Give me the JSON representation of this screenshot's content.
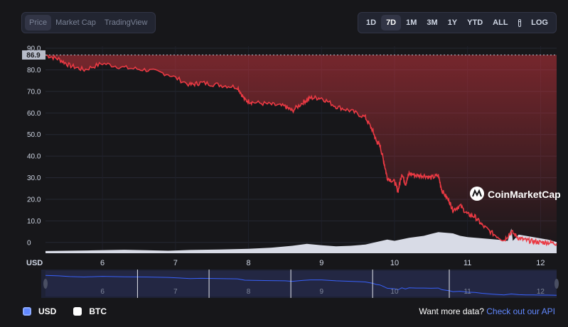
{
  "tabs_left": [
    "Price",
    "Market Cap",
    "TradingView"
  ],
  "ranges": [
    "1D",
    "7D",
    "1M",
    "3M",
    "1Y",
    "YTD",
    "ALL"
  ],
  "active_range": "7D",
  "log_label": "LOG",
  "icons": {
    "calendar": "calendar-icon",
    "brand": "coinmarketcap-logo"
  },
  "brand": "CoinMarketCap",
  "colors": {
    "line": "#ea3943",
    "volume": "#d8dbe6",
    "navigator": "#3861fb",
    "usd": "#6188ff",
    "btc": "#ffffff"
  },
  "chart_data": {
    "type": "line",
    "series": [
      {
        "name": "USD",
        "x": [
          5.22,
          5.4,
          5.55,
          5.75,
          6.0,
          6.3,
          6.6,
          6.9,
          7.2,
          7.35,
          7.6,
          7.85,
          7.95,
          8.05,
          8.3,
          8.5,
          8.6,
          8.75,
          8.85,
          9.0,
          9.2,
          9.4,
          9.6,
          9.7,
          9.75,
          9.8,
          9.85,
          9.9,
          10.0,
          10.05,
          10.1,
          10.15,
          10.2,
          10.3,
          10.4,
          10.5,
          10.6,
          10.65,
          10.75,
          10.8,
          10.9,
          11.0,
          11.1,
          11.2,
          11.35,
          11.5,
          11.6,
          11.7,
          11.8,
          11.9,
          12.0,
          12.1,
          12.22
        ],
        "values": [
          86.9,
          85,
          82,
          80,
          83,
          81,
          80,
          78,
          73,
          74,
          73,
          72,
          66,
          65,
          64,
          63,
          61,
          65,
          67,
          67,
          63,
          61,
          58,
          52,
          47,
          45,
          38,
          30,
          28,
          24,
          32,
          27,
          32,
          31,
          31,
          30,
          31,
          24,
          19,
          15,
          17,
          13,
          12,
          8,
          4,
          1,
          5,
          2,
          1,
          0.5,
          0,
          0,
          -0.5
        ]
      }
    ],
    "y_current_label": "86.9",
    "yticks": [
      "90.0",
      "80.0",
      "70.0",
      "60.0",
      "50.0",
      "40.0",
      "30.0",
      "20.0",
      "10.0",
      "0"
    ],
    "ylim": [
      -5,
      91
    ],
    "xticks": [
      "6",
      "7",
      "8",
      "9",
      "10",
      "11",
      "12"
    ],
    "xlim": [
      5.22,
      12.22
    ],
    "x_axis_unit": "USD",
    "volume": {
      "x": [
        5.22,
        5.8,
        6.3,
        6.6,
        6.9,
        7.2,
        7.6,
        8.0,
        8.3,
        8.6,
        8.8,
        9.0,
        9.2,
        9.4,
        9.6,
        9.75,
        9.9,
        10.0,
        10.2,
        10.4,
        10.5,
        10.6,
        10.8,
        10.9,
        11.0,
        11.2,
        11.4,
        11.55,
        11.6,
        11.62,
        11.7,
        11.9,
        12.1,
        12.22
      ],
      "values": [
        0.09,
        0.11,
        0.14,
        0.12,
        0.1,
        0.13,
        0.15,
        0.18,
        0.22,
        0.3,
        0.38,
        0.32,
        0.28,
        0.3,
        0.35,
        0.45,
        0.55,
        0.5,
        0.62,
        0.7,
        0.78,
        0.85,
        0.8,
        0.7,
        0.65,
        0.6,
        0.55,
        0.5,
        1.0,
        0.5,
        0.75,
        0.65,
        0.55,
        0.45
      ]
    },
    "grid": true
  },
  "footer": {
    "legend": [
      {
        "label": "USD",
        "color": "#6188ff",
        "icon": "checkbox-icon"
      },
      {
        "label": "BTC",
        "color": "#ffffff",
        "icon": "checkbox-icon"
      }
    ],
    "prompt": "Want more data?",
    "link": "Check out our API"
  }
}
